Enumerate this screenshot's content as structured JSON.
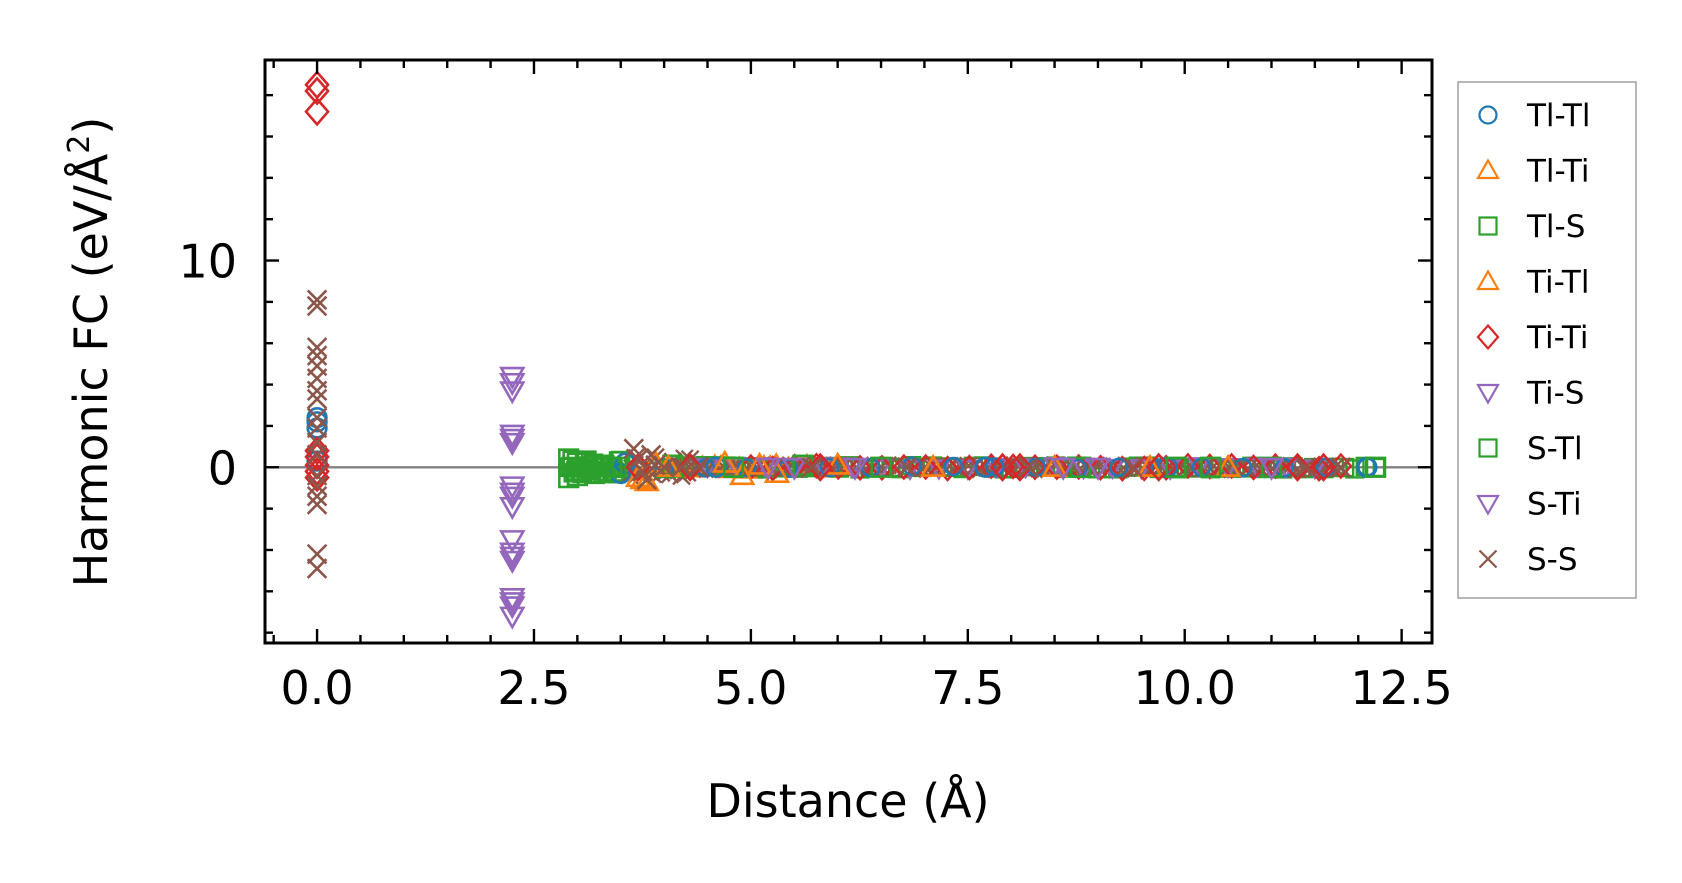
{
  "chart_data": {
    "type": "scatter",
    "xlabel": "Distance (Å)",
    "ylabel_main": "Harmonic FC (eV/Å",
    "ylabel_sup": "2",
    "ylabel_close": ")",
    "xlim": [
      -0.6,
      12.85
    ],
    "ylim": [
      -8.5,
      19.7
    ],
    "xticks": [
      0.0,
      2.5,
      5.0,
      7.5,
      10.0,
      12.5
    ],
    "xtick_labels": [
      "0.0",
      "2.5",
      "5.0",
      "7.5",
      "10.0",
      "12.5"
    ],
    "yticks": [
      0,
      10
    ],
    "ytick_labels": [
      "0",
      "10"
    ],
    "zero_line": true,
    "legend": "right-outside",
    "series": [
      {
        "name": "Tl-Tl",
        "marker": "circle",
        "color": "#1f77b4",
        "points": [
          [
            0,
            2.4
          ],
          [
            0,
            2.2
          ],
          [
            0,
            1.9
          ],
          [
            0,
            0.3
          ],
          [
            3.5,
            -0.3
          ],
          [
            3.55,
            0.2
          ],
          [
            4.6,
            0.0
          ],
          [
            7.7,
            0.0
          ],
          [
            9.8,
            0.0
          ],
          [
            12.1,
            0.0
          ]
        ]
      },
      {
        "name": "Tl-Ti",
        "marker": "triangle-up",
        "color": "#ff7f0e",
        "points": [
          [
            3.7,
            -0.5
          ],
          [
            3.8,
            -0.7
          ],
          [
            3.9,
            0.2
          ],
          [
            4.7,
            0.2
          ],
          [
            4.9,
            -0.4
          ],
          [
            5.3,
            -0.3
          ],
          [
            6.0,
            0.1
          ],
          [
            8.5,
            0.0
          ],
          [
            10.5,
            0.0
          ]
        ]
      },
      {
        "name": "Tl-S",
        "marker": "square",
        "color": "#2ca02c",
        "points": [
          [
            2.9,
            0.4
          ],
          [
            2.9,
            -0.5
          ],
          [
            3.0,
            0.2
          ],
          [
            3.0,
            -0.4
          ],
          [
            3.1,
            0.3
          ],
          [
            3.2,
            -0.3
          ],
          [
            3.3,
            0.1
          ],
          [
            3.45,
            0.0
          ],
          [
            4.1,
            0.1
          ],
          [
            5.6,
            0.1
          ],
          [
            6.5,
            0.0
          ],
          [
            8.8,
            0.0
          ],
          [
            10.3,
            0.0
          ],
          [
            11.0,
            0.0
          ],
          [
            12.2,
            0.0
          ]
        ]
      },
      {
        "name": "Ti-Tl",
        "marker": "triangle-up",
        "color": "#ff7f0e",
        "points": [
          [
            3.75,
            -0.6
          ],
          [
            4.05,
            0.0
          ],
          [
            5.1,
            0.1
          ],
          [
            7.1,
            0.0
          ],
          [
            9.6,
            0.0
          ]
        ]
      },
      {
        "name": "Ti-Ti",
        "marker": "diamond",
        "color": "#d62728",
        "points": [
          [
            0,
            18.5
          ],
          [
            0,
            18.2
          ],
          [
            0,
            17.2
          ],
          [
            0,
            0.8
          ],
          [
            0,
            0.5
          ],
          [
            0,
            0.1
          ],
          [
            0,
            -0.2
          ],
          [
            0,
            -0.5
          ],
          [
            3.7,
            0.0
          ],
          [
            4.3,
            0.0
          ],
          [
            5.8,
            0.0
          ],
          [
            7.9,
            0.0
          ],
          [
            8.1,
            0.0
          ],
          [
            9.7,
            0.0
          ],
          [
            11.3,
            0.0
          ],
          [
            11.6,
            0.0
          ]
        ]
      },
      {
        "name": "Ti-S",
        "marker": "triangle-down",
        "color": "#9467bd",
        "points": [
          [
            2.25,
            4.4
          ],
          [
            2.25,
            3.7
          ],
          [
            2.25,
            1.6
          ],
          [
            2.25,
            1.2
          ],
          [
            2.25,
            -0.9
          ],
          [
            2.25,
            -1.4
          ],
          [
            2.25,
            -1.9
          ],
          [
            2.25,
            -3.5
          ],
          [
            2.25,
            -4.1
          ],
          [
            2.25,
            -4.5
          ],
          [
            2.25,
            -6.3
          ],
          [
            2.25,
            -6.7
          ],
          [
            2.25,
            -7.2
          ],
          [
            5.2,
            0.0
          ],
          [
            6.2,
            0.0
          ],
          [
            9.0,
            0.0
          ],
          [
            11.0,
            0.0
          ]
        ]
      },
      {
        "name": "S-Tl",
        "marker": "square",
        "color": "#2ca02c",
        "points": [
          [
            2.95,
            0.3
          ],
          [
            3.05,
            -0.2
          ],
          [
            3.4,
            0.0
          ],
          [
            4.8,
            0.0
          ],
          [
            9.9,
            0.0
          ]
        ]
      },
      {
        "name": "S-Ti",
        "marker": "triangle-down",
        "color": "#9467bd",
        "points": [
          [
            2.25,
            4.1
          ],
          [
            2.25,
            1.4
          ],
          [
            2.25,
            -1.2
          ],
          [
            2.25,
            -4.3
          ],
          [
            2.25,
            -6.5
          ],
          [
            5.5,
            0.0
          ],
          [
            8.6,
            0.0
          ]
        ]
      },
      {
        "name": "S-S",
        "marker": "x",
        "color": "#8c564b",
        "points": [
          [
            0,
            8.1
          ],
          [
            0,
            7.8
          ],
          [
            0,
            5.8
          ],
          [
            0,
            5.4
          ],
          [
            0,
            4.9
          ],
          [
            0,
            4.3
          ],
          [
            0,
            3.7
          ],
          [
            0,
            3.3
          ],
          [
            0,
            2.4
          ],
          [
            0,
            1.9
          ],
          [
            0,
            1.2
          ],
          [
            0,
            0.6
          ],
          [
            0,
            -0.4
          ],
          [
            0,
            -0.9
          ],
          [
            0,
            -1.4
          ],
          [
            0,
            -1.8
          ],
          [
            0,
            -4.2
          ],
          [
            0,
            -4.9
          ],
          [
            3.65,
            0.9
          ],
          [
            3.7,
            0.4
          ],
          [
            3.75,
            -0.2
          ],
          [
            3.8,
            -0.6
          ],
          [
            3.85,
            0.6
          ],
          [
            3.9,
            0.1
          ],
          [
            4.0,
            0.0
          ],
          [
            4.2,
            0.0
          ],
          [
            4.4,
            0.0
          ],
          [
            5.7,
            0.0
          ],
          [
            6.8,
            0.0
          ],
          [
            8.2,
            0.0
          ],
          [
            9.4,
            0.0
          ],
          [
            11.4,
            0.0
          ],
          [
            11.8,
            0.0
          ]
        ]
      }
    ],
    "bands": [
      {
        "series": "Tl-S",
        "x_start": 2.9,
        "x_end": 3.5,
        "y": 0.0,
        "count": 24,
        "spread": 0.35
      },
      {
        "series": "S-S",
        "x_start": 3.6,
        "x_end": 4.3,
        "y": 0.0,
        "count": 22,
        "spread": 0.5
      },
      {
        "series": "Tl-Ti",
        "x_start": 4.3,
        "x_end": 6.0,
        "y": 0.0,
        "count": 25,
        "spread": 0.15
      },
      {
        "series": "Tl-S",
        "x_start": 4.0,
        "x_end": 12.2,
        "y": 0.0,
        "count": 70,
        "spread": 0.08
      },
      {
        "series": "S-S",
        "x_start": 4.0,
        "x_end": 11.8,
        "y": 0.0,
        "count": 110,
        "spread": 0.1
      },
      {
        "series": "Ti-S",
        "x_start": 4.5,
        "x_end": 11.5,
        "y": 0.0,
        "count": 22,
        "spread": 0.08
      },
      {
        "series": "Ti-Ti",
        "x_start": 5.0,
        "x_end": 11.8,
        "y": 0.0,
        "count": 28,
        "spread": 0.08
      },
      {
        "series": "Tl-Tl",
        "x_start": 4.0,
        "x_end": 12.1,
        "y": 0.0,
        "count": 18,
        "spread": 0.06
      }
    ]
  }
}
